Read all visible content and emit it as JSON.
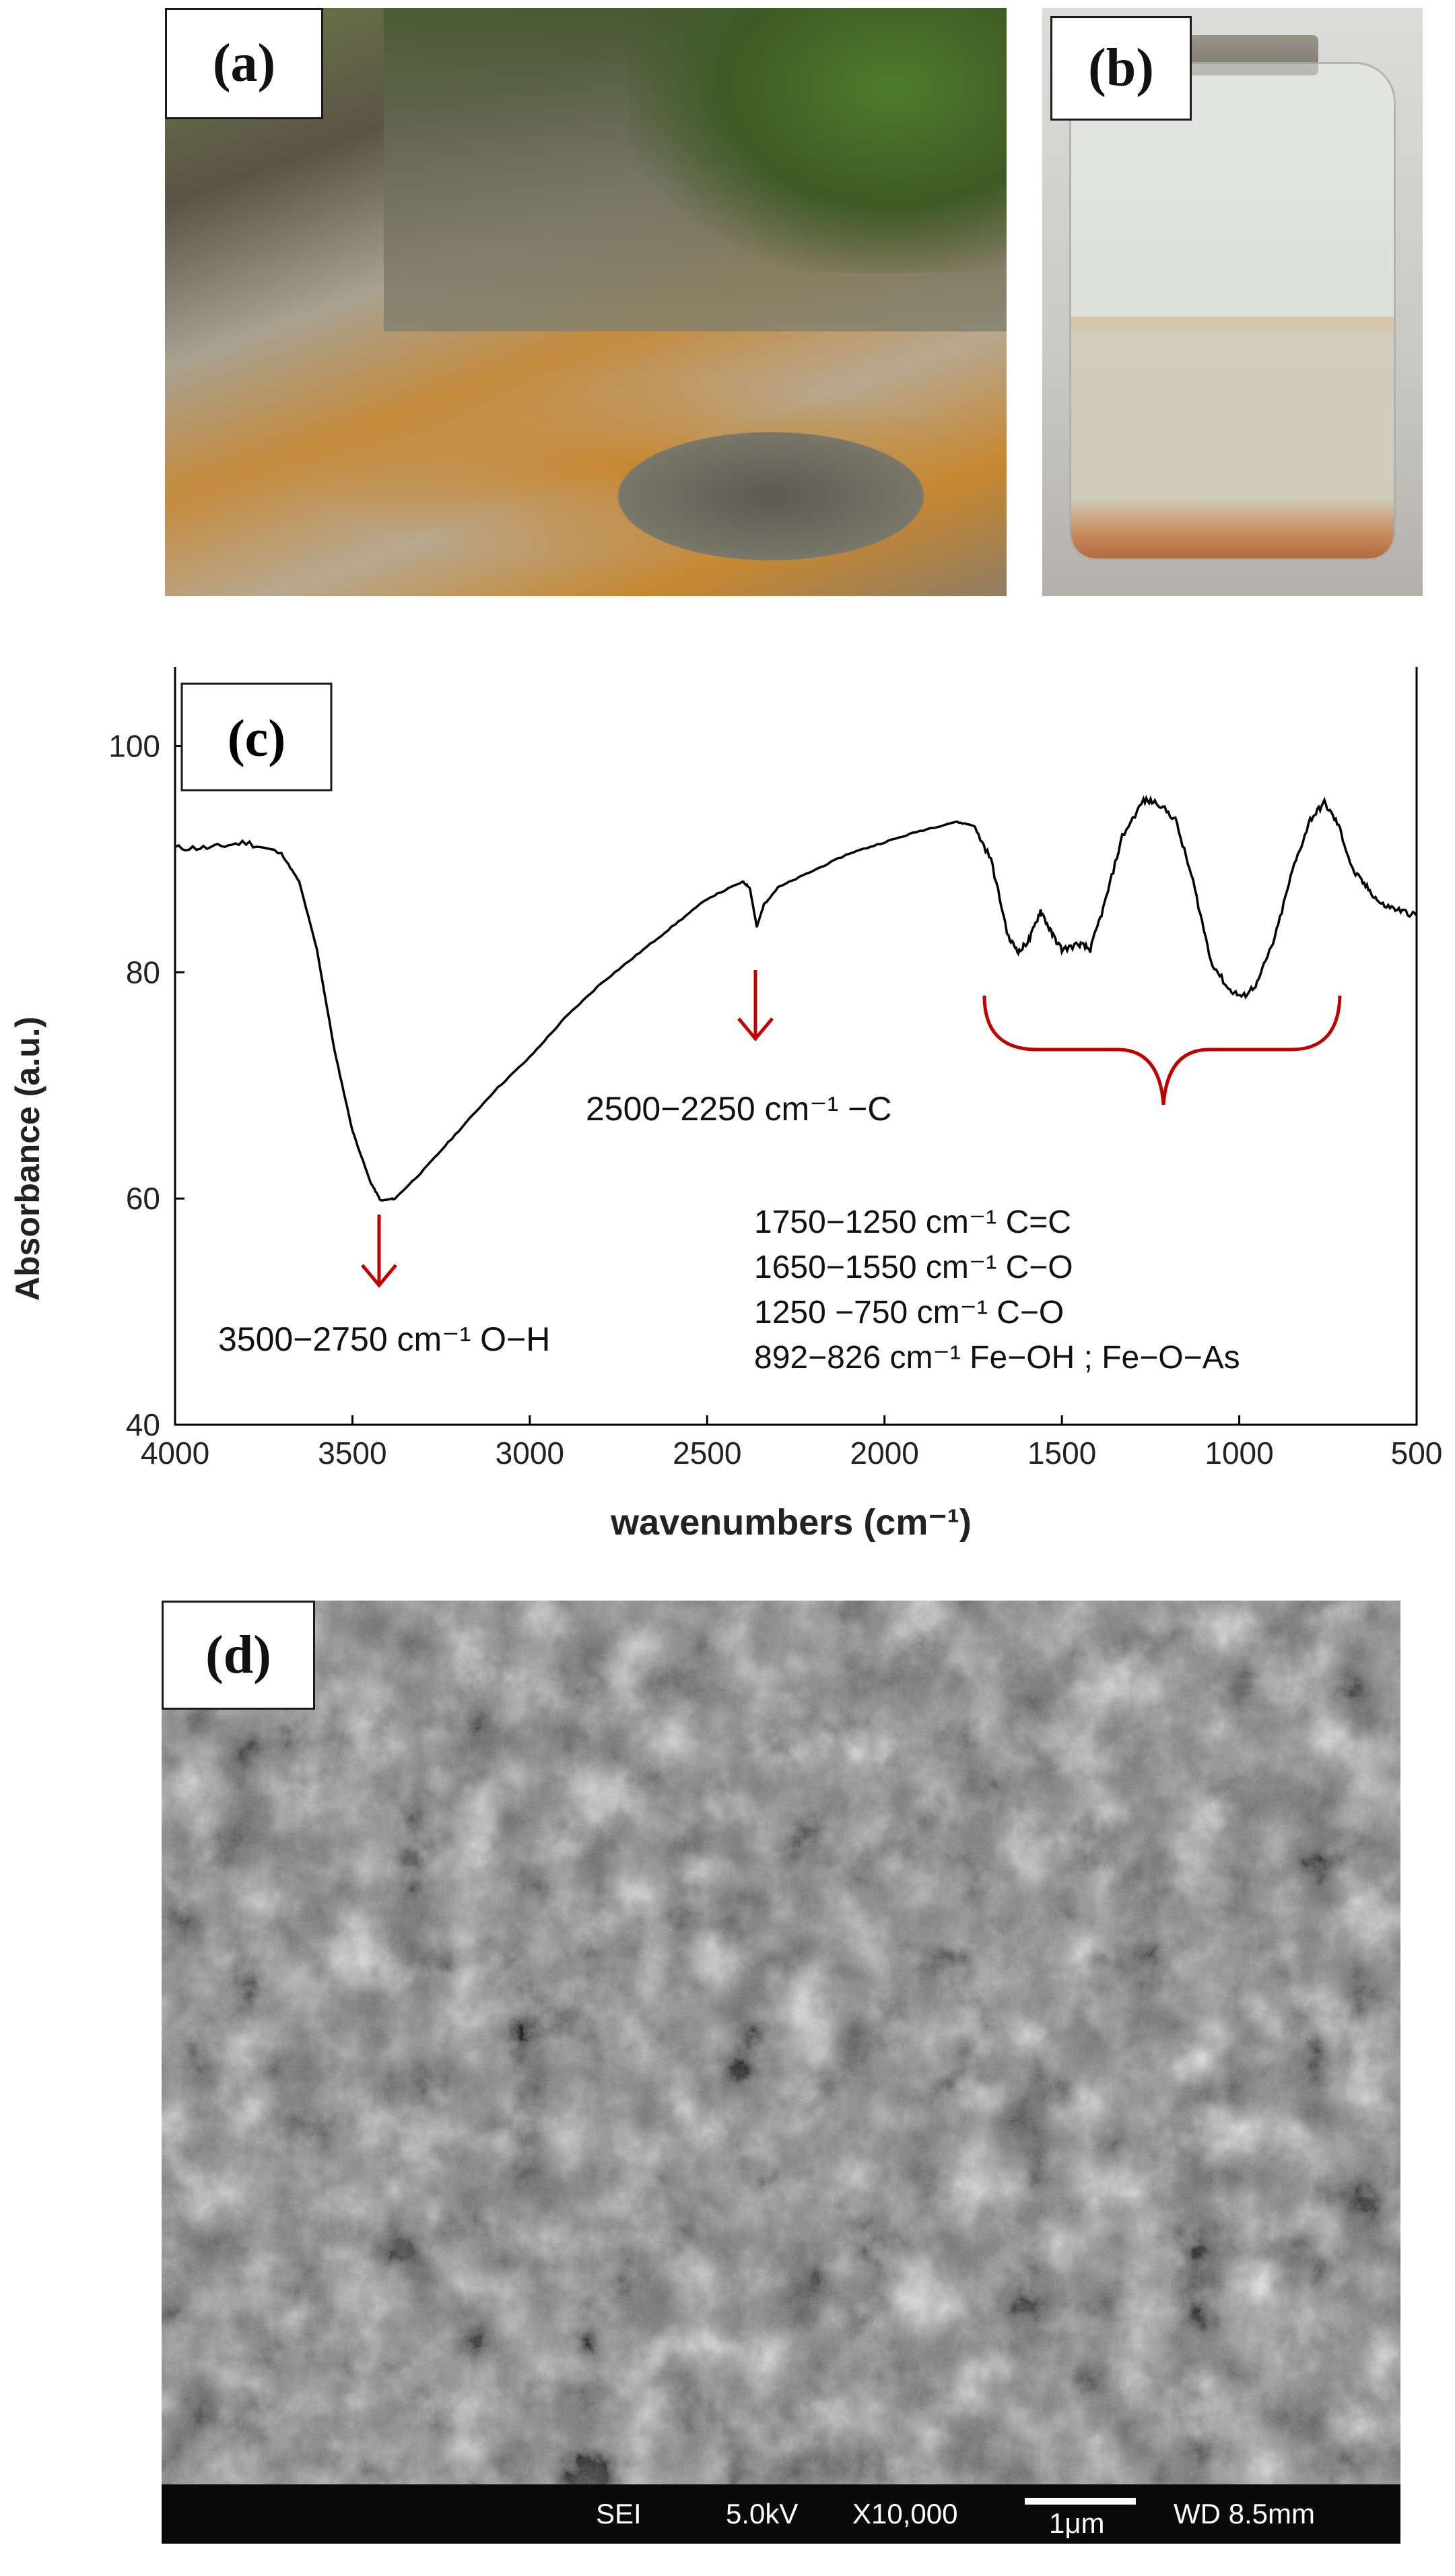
{
  "panels": {
    "a": {
      "label": "(a)"
    },
    "b": {
      "label": "(b)"
    },
    "c": {
      "label": "(c)"
    },
    "d": {
      "label": "(d)"
    }
  },
  "sem_info": {
    "mode": "SEI",
    "voltage": "5.0kV",
    "magnification": "X10,000",
    "scale": "1μm",
    "wd": "WD 8.5mm"
  },
  "chart_data": {
    "type": "line",
    "title": "",
    "xlabel": "wavenumbers (cm⁻¹)",
    "ylabel": "Absorbance (a.u.)",
    "xlim": [
      4000,
      500
    ],
    "ylim": [
      40,
      107
    ],
    "x_ticks": [
      4000,
      3500,
      3000,
      2500,
      2000,
      1500,
      1000,
      500
    ],
    "y_ticks": [
      40,
      60,
      80,
      100
    ],
    "grid": false,
    "series": [
      {
        "color": "#000000",
        "points": [
          [
            4000,
            91
          ],
          [
            3900,
            91
          ],
          [
            3800,
            91.5
          ],
          [
            3700,
            90.5
          ],
          [
            3650,
            88
          ],
          [
            3600,
            82
          ],
          [
            3550,
            73
          ],
          [
            3500,
            66
          ],
          [
            3450,
            61.5
          ],
          [
            3420,
            59.8
          ],
          [
            3380,
            60
          ],
          [
            3300,
            62.5
          ],
          [
            3200,
            66
          ],
          [
            3100,
            69.5
          ],
          [
            3000,
            72.5
          ],
          [
            2900,
            76
          ],
          [
            2800,
            79
          ],
          [
            2700,
            81.5
          ],
          [
            2600,
            84
          ],
          [
            2500,
            86.5
          ],
          [
            2400,
            88
          ],
          [
            2380,
            87.5
          ],
          [
            2360,
            84
          ],
          [
            2340,
            86
          ],
          [
            2300,
            87.5
          ],
          [
            2200,
            89
          ],
          [
            2100,
            90.5
          ],
          [
            2000,
            91.5
          ],
          [
            1900,
            92.5
          ],
          [
            1800,
            93.3
          ],
          [
            1750,
            93
          ],
          [
            1700,
            90
          ],
          [
            1650,
            83
          ],
          [
            1620,
            81.8
          ],
          [
            1590,
            83
          ],
          [
            1560,
            85.5
          ],
          [
            1530,
            83.5
          ],
          [
            1500,
            82
          ],
          [
            1450,
            82.5
          ],
          [
            1420,
            82
          ],
          [
            1380,
            86
          ],
          [
            1330,
            92
          ],
          [
            1270,
            95.2
          ],
          [
            1230,
            95
          ],
          [
            1180,
            93.5
          ],
          [
            1130,
            88
          ],
          [
            1080,
            81
          ],
          [
            1030,
            78.5
          ],
          [
            990,
            77.8
          ],
          [
            950,
            79
          ],
          [
            900,
            83
          ],
          [
            850,
            89
          ],
          [
            800,
            93.5
          ],
          [
            760,
            95
          ],
          [
            720,
            93
          ],
          [
            680,
            89
          ],
          [
            640,
            87.5
          ],
          [
            600,
            86
          ],
          [
            550,
            85.5
          ],
          [
            500,
            85
          ]
        ]
      }
    ],
    "annotations": {
      "oh_label": "3500−2750 cm⁻¹ O−H",
      "c_label": "2500−2250 cm⁻¹ −C",
      "band_list": [
        "1750−1250 cm⁻¹   C=C",
        "1650−1550 cm⁻¹ C−O",
        "1250 −750 cm⁻¹    C−O",
        "892−826 cm⁻¹    Fe−OH ; Fe−O−As"
      ]
    }
  }
}
